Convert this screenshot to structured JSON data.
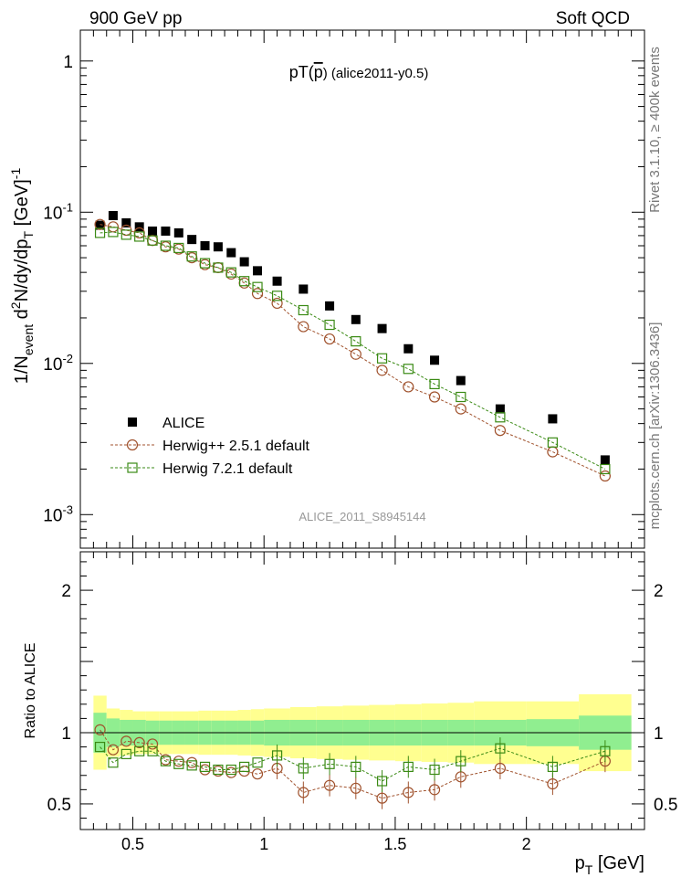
{
  "header": {
    "left": "900 GeV pp",
    "right": "Soft QCD"
  },
  "side": {
    "rivet": "Rivet 3.1.10, ≥ 400k events",
    "mcplots": "mcplots.cern.ch [arXiv:1306.3436]"
  },
  "chart_data": [
    {
      "type": "scatter",
      "panel": "main",
      "title": "pT(p̄) (alice2011-y0.5)",
      "title_parts": {
        "main": "pT(",
        "p": "p",
        "rest": ") (alice2011-y0.5)"
      },
      "xlabel": "p_T [GeV]",
      "ylabel": "1/N_event d²N/dy/dp_T [GeV]⁻¹",
      "ylabel_parts": {
        "a": "1/N",
        "b": "event",
        "c": " d",
        "d": "2",
        "e": "N/dy/dp",
        "f": "T",
        "g": " [GeV]",
        "h": "-1"
      },
      "yscale": "log",
      "xlim": [
        0.3,
        2.45
      ],
      "ylim": [
        0.0006,
        1.6
      ],
      "yticks": [
        {
          "value": 1,
          "base": "1",
          "exp": ""
        },
        {
          "value": 0.1,
          "base": "10",
          "exp": "-1"
        },
        {
          "value": 0.01,
          "base": "10",
          "exp": "-2"
        },
        {
          "value": 0.001,
          "base": "10",
          "exp": "-3"
        }
      ],
      "watermark": "ALICE_2011_S8945144",
      "legend_position": "lower-left",
      "x": [
        0.375,
        0.425,
        0.475,
        0.525,
        0.575,
        0.625,
        0.675,
        0.725,
        0.775,
        0.825,
        0.875,
        0.925,
        0.975,
        1.05,
        1.15,
        1.25,
        1.35,
        1.45,
        1.55,
        1.65,
        1.75,
        1.9,
        2.1,
        2.3
      ],
      "series": [
        {
          "name": "ALICE",
          "style": "data",
          "color": "#000000",
          "values": [
            0.082,
            0.095,
            0.085,
            0.08,
            0.075,
            0.075,
            0.073,
            0.066,
            0.06,
            0.059,
            0.054,
            0.047,
            0.041,
            0.035,
            0.031,
            0.024,
            0.0195,
            0.017,
            0.0125,
            0.0105,
            0.0077,
            0.005,
            0.0043,
            0.0023
          ]
        },
        {
          "name": "Herwig++ 2.5.1 default",
          "style": "circle",
          "color": "#a0522d",
          "values": [
            0.083,
            0.08,
            0.076,
            0.073,
            0.065,
            0.059,
            0.057,
            0.05,
            0.045,
            0.043,
            0.039,
            0.034,
            0.029,
            0.025,
            0.0175,
            0.0145,
            0.0115,
            0.009,
            0.007,
            0.006,
            0.005,
            0.0036,
            0.0026,
            0.0018
          ]
        },
        {
          "name": "Herwig 7.2.1 default",
          "style": "square",
          "color": "#3a8a14",
          "values": [
            0.073,
            0.074,
            0.071,
            0.069,
            0.065,
            0.06,
            0.058,
            0.051,
            0.046,
            0.043,
            0.04,
            0.035,
            0.032,
            0.028,
            0.0225,
            0.018,
            0.014,
            0.0108,
            0.0092,
            0.0073,
            0.006,
            0.0044,
            0.003,
            0.002
          ]
        }
      ]
    },
    {
      "type": "scatter",
      "panel": "ratio",
      "xlabel": "p_T [GeV]",
      "ylabel": "Ratio to ALICE",
      "xlim": [
        0.3,
        2.45
      ],
      "ylim": [
        0.32,
        2.27
      ],
      "xticks": [
        "0.5",
        "1",
        "1.5",
        "2"
      ],
      "xtick_values": [
        0.5,
        1,
        1.5,
        2
      ],
      "yticks": [
        "0.5",
        "1",
        "2"
      ],
      "ytick_values": [
        0.5,
        1,
        2
      ],
      "x": [
        0.375,
        0.425,
        0.475,
        0.525,
        0.575,
        0.625,
        0.675,
        0.725,
        0.775,
        0.825,
        0.875,
        0.925,
        0.975,
        1.05,
        1.15,
        1.25,
        1.35,
        1.45,
        1.55,
        1.65,
        1.75,
        1.9,
        2.1,
        2.3
      ],
      "bands": {
        "bin_edges": [
          0.35,
          0.4,
          0.45,
          0.5,
          0.55,
          0.6,
          0.65,
          0.7,
          0.75,
          0.8,
          0.85,
          0.9,
          0.95,
          1.0,
          1.1,
          1.2,
          1.3,
          1.4,
          1.5,
          1.6,
          1.7,
          1.8,
          2.0,
          2.2,
          2.4
        ],
        "stat_half_width": [
          0.14,
          0.1,
          0.09,
          0.09,
          0.085,
          0.085,
          0.085,
          0.085,
          0.085,
          0.085,
          0.085,
          0.085,
          0.085,
          0.09,
          0.09,
          0.09,
          0.09,
          0.09,
          0.09,
          0.09,
          0.09,
          0.09,
          0.095,
          0.12
        ],
        "syst_half_width": [
          0.26,
          0.17,
          0.16,
          0.15,
          0.15,
          0.15,
          0.15,
          0.15,
          0.155,
          0.155,
          0.155,
          0.16,
          0.165,
          0.17,
          0.18,
          0.185,
          0.19,
          0.195,
          0.2,
          0.205,
          0.21,
          0.22,
          0.22,
          0.27
        ],
        "stat_color": "#90ee90",
        "syst_color": "#ffff90"
      },
      "series": [
        {
          "name": "Herwig++ 2.5.1 default",
          "style": "circle",
          "color": "#a0522d",
          "values": [
            1.02,
            0.88,
            0.94,
            0.93,
            0.92,
            0.81,
            0.8,
            0.79,
            0.74,
            0.73,
            0.72,
            0.73,
            0.71,
            0.75,
            0.58,
            0.63,
            0.61,
            0.54,
            0.58,
            0.6,
            0.69,
            0.75,
            0.64,
            0.8
          ]
        },
        {
          "name": "Herwig 7.2.1 default",
          "style": "square",
          "color": "#3a8a14",
          "values": [
            0.9,
            0.79,
            0.85,
            0.87,
            0.87,
            0.8,
            0.78,
            0.77,
            0.76,
            0.74,
            0.74,
            0.76,
            0.79,
            0.84,
            0.75,
            0.78,
            0.76,
            0.66,
            0.76,
            0.74,
            0.8,
            0.89,
            0.76,
            0.87
          ]
        }
      ]
    }
  ]
}
